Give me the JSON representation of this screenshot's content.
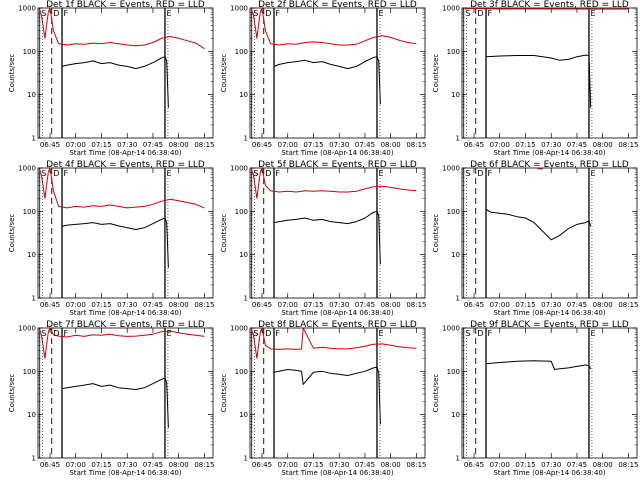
{
  "chart_data": [
    {
      "type": "line",
      "title": "Det 1f BLACK = Events, RED = LLD",
      "xlabel": "Start Time (08-Apr-14 06:38:40)",
      "ylabel": "Counts/sec",
      "xticks": [
        "06:45",
        "07:00",
        "07:15",
        "07:30",
        "07:45",
        "08:00",
        "08:15"
      ],
      "yticks": [
        "1",
        "10",
        "100",
        "1000"
      ],
      "ylim": [
        1,
        1000
      ],
      "yscale": "log",
      "markers": {
        "S": "06:39",
        "D": "06:46",
        "F": "06:52",
        "E": "07:52"
      },
      "series": [
        {
          "name": "LLD",
          "color": "#d00000",
          "x": [
            "06:39",
            "06:40",
            "06:42",
            "06:44",
            "06:45",
            "06:47",
            "06:50",
            "06:55",
            "07:00",
            "07:05",
            "07:10",
            "07:15",
            "07:20",
            "07:25",
            "07:30",
            "07:35",
            "07:40",
            "07:45",
            "07:50",
            "07:55",
            "08:00",
            "08:05",
            "08:10",
            "08:15"
          ],
          "y": [
            900,
            700,
            200,
            800,
            1000,
            300,
            150,
            140,
            150,
            145,
            155,
            150,
            160,
            150,
            140,
            135,
            140,
            160,
            200,
            220,
            200,
            175,
            155,
            115
          ]
        },
        {
          "name": "Events",
          "color": "#000000",
          "x": [
            "06:52",
            "06:55",
            "07:00",
            "07:05",
            "07:10",
            "07:15",
            "07:20",
            "07:25",
            "07:30",
            "07:35",
            "07:40",
            "07:45",
            "07:50",
            "07:52",
            "07:53",
            "07:54"
          ],
          "y": [
            45,
            48,
            52,
            55,
            60,
            52,
            55,
            48,
            45,
            40,
            45,
            55,
            70,
            75,
            60,
            5
          ]
        }
      ]
    },
    {
      "type": "line",
      "title": "Det 2f BLACK = Events, RED = LLD",
      "xlabel": "Start Time (08-Apr-14 06:38:40)",
      "ylabel": "Counts/sec",
      "xticks": [
        "06:45",
        "07:00",
        "07:15",
        "07:30",
        "07:45",
        "08:00",
        "08:15"
      ],
      "yticks": [
        "1",
        "10",
        "100",
        "1000"
      ],
      "ylim": [
        1,
        1000
      ],
      "yscale": "log",
      "markers": {
        "S": "06:39",
        "D": "06:46",
        "F": "06:52",
        "E": "07:52"
      },
      "series": [
        {
          "name": "LLD",
          "color": "#d00000",
          "x": [
            "06:39",
            "06:40",
            "06:42",
            "06:44",
            "06:45",
            "06:47",
            "06:50",
            "06:55",
            "07:00",
            "07:05",
            "07:10",
            "07:15",
            "07:20",
            "07:25",
            "07:30",
            "07:35",
            "07:40",
            "07:45",
            "07:50",
            "07:55",
            "08:00",
            "08:05",
            "08:10",
            "08:15"
          ],
          "y": [
            900,
            700,
            200,
            800,
            1000,
            300,
            150,
            140,
            150,
            145,
            160,
            165,
            160,
            150,
            140,
            140,
            145,
            175,
            210,
            230,
            210,
            180,
            160,
            150
          ]
        },
        {
          "name": "Events",
          "color": "#000000",
          "x": [
            "06:52",
            "06:55",
            "07:00",
            "07:05",
            "07:10",
            "07:15",
            "07:20",
            "07:25",
            "07:30",
            "07:35",
            "07:40",
            "07:45",
            "07:50",
            "07:52",
            "07:53",
            "07:54"
          ],
          "y": [
            45,
            50,
            55,
            58,
            62,
            55,
            58,
            50,
            45,
            40,
            45,
            58,
            72,
            75,
            60,
            6
          ]
        }
      ]
    },
    {
      "type": "line",
      "title": "Det 3f BLACK = Events, RED = LLD",
      "xlabel": "Start Time (08-Apr-14 06:38:40)",
      "ylabel": "Counts/sec",
      "xticks": [
        "06:45",
        "07:00",
        "07:15",
        "07:30",
        "07:45",
        "08:00",
        "08:15"
      ],
      "yticks": [
        "1",
        "10",
        "100",
        "1000"
      ],
      "ylim": [
        1,
        1000
      ],
      "yscale": "log",
      "markers": {
        "S": "06:39",
        "D": "06:46",
        "F": "06:52",
        "E": "07:52"
      },
      "series": [
        {
          "name": "LLD",
          "color": "#d00000",
          "x": [
            "06:40",
            "06:45",
            "06:50",
            "07:00",
            "07:15",
            "07:30",
            "07:45",
            "08:00",
            "08:15"
          ],
          "y": [
            950,
            980,
            960,
            950,
            955,
            950,
            950,
            945,
            950
          ]
        },
        {
          "name": "Events",
          "color": "#000000",
          "x": [
            "06:52",
            "07:00",
            "07:10",
            "07:20",
            "07:30",
            "07:35",
            "07:40",
            "07:45",
            "07:50",
            "07:52",
            "07:53"
          ],
          "y": [
            75,
            78,
            80,
            80,
            70,
            62,
            65,
            75,
            82,
            80,
            5
          ]
        }
      ]
    },
    {
      "type": "line",
      "title": "Det 4f BLACK = Events, RED = LLD",
      "xlabel": "Start Time (08-Apr-14 06:38:40)",
      "ylabel": "Counts/sec",
      "xticks": [
        "06:45",
        "07:00",
        "07:15",
        "07:30",
        "07:45",
        "08:00",
        "08:15"
      ],
      "yticks": [
        "1",
        "10",
        "100",
        "1000"
      ],
      "ylim": [
        1,
        1000
      ],
      "yscale": "log",
      "markers": {
        "S": "06:39",
        "D": "06:46",
        "F": "06:52",
        "E": "07:52"
      },
      "series": [
        {
          "name": "LLD",
          "color": "#d00000",
          "x": [
            "06:39",
            "06:40",
            "06:42",
            "06:44",
            "06:45",
            "06:47",
            "06:50",
            "06:55",
            "07:00",
            "07:05",
            "07:10",
            "07:15",
            "07:20",
            "07:25",
            "07:30",
            "07:35",
            "07:40",
            "07:45",
            "07:50",
            "07:55",
            "08:00",
            "08:05",
            "08:10",
            "08:15"
          ],
          "y": [
            900,
            700,
            200,
            800,
            1000,
            300,
            130,
            120,
            130,
            125,
            135,
            130,
            140,
            130,
            120,
            125,
            130,
            145,
            170,
            190,
            175,
            160,
            145,
            120
          ]
        },
        {
          "name": "Events",
          "color": "#000000",
          "x": [
            "06:52",
            "06:55",
            "07:00",
            "07:05",
            "07:10",
            "07:15",
            "07:20",
            "07:25",
            "07:30",
            "07:35",
            "07:40",
            "07:45",
            "07:50",
            "07:52",
            "07:53",
            "07:54"
          ],
          "y": [
            45,
            48,
            50,
            52,
            55,
            50,
            52,
            46,
            42,
            38,
            42,
            52,
            65,
            70,
            55,
            5
          ]
        }
      ]
    },
    {
      "type": "line",
      "title": "Det 5f BLACK = Events, RED = LLD",
      "xlabel": "Start Time (08-Apr-14 06:38:40)",
      "ylabel": "Counts/sec",
      "xticks": [
        "06:45",
        "07:00",
        "07:15",
        "07:30",
        "07:45",
        "08:00",
        "08:15"
      ],
      "yticks": [
        "1",
        "10",
        "100",
        "1000"
      ],
      "ylim": [
        1,
        1000
      ],
      "yscale": "log",
      "markers": {
        "S": "06:39",
        "D": "06:46",
        "F": "06:52",
        "E": "07:52"
      },
      "series": [
        {
          "name": "LLD",
          "color": "#d00000",
          "x": [
            "06:39",
            "06:40",
            "06:42",
            "06:44",
            "06:45",
            "06:47",
            "06:50",
            "06:55",
            "07:00",
            "07:05",
            "07:10",
            "07:15",
            "07:20",
            "07:25",
            "07:30",
            "07:35",
            "07:40",
            "07:45",
            "07:50",
            "07:55",
            "08:00",
            "08:05",
            "08:10",
            "08:15"
          ],
          "y": [
            900,
            700,
            200,
            800,
            1000,
            400,
            300,
            280,
            290,
            280,
            300,
            290,
            300,
            290,
            280,
            280,
            290,
            330,
            370,
            380,
            360,
            330,
            310,
            300
          ]
        },
        {
          "name": "Events",
          "color": "#000000",
          "x": [
            "06:52",
            "06:55",
            "07:00",
            "07:05",
            "07:10",
            "07:15",
            "07:20",
            "07:25",
            "07:30",
            "07:35",
            "07:40",
            "07:45",
            "07:50",
            "07:52",
            "07:53",
            "07:54"
          ],
          "y": [
            55,
            58,
            62,
            65,
            70,
            62,
            65,
            58,
            55,
            52,
            58,
            70,
            95,
            100,
            80,
            6
          ]
        }
      ]
    },
    {
      "type": "line",
      "title": "Det 6f BLACK = Events, RED = LLD",
      "xlabel": "Start Time (08-Apr-14 06:38:40)",
      "ylabel": "Counts/sec",
      "xticks": [
        "06:45",
        "07:00",
        "07:15",
        "07:30",
        "07:45",
        "08:00",
        "08:15"
      ],
      "yticks": [
        "1",
        "10",
        "100",
        "1000"
      ],
      "ylim": [
        1,
        1000
      ],
      "yscale": "log",
      "markers": {
        "S": "06:39",
        "D": "06:46",
        "F": "06:52",
        "E": "07:52"
      },
      "series": [
        {
          "name": "LLD",
          "color": "#d00000",
          "x": [
            "07:22",
            "07:25"
          ],
          "y": [
            960,
            950
          ]
        },
        {
          "name": "Events",
          "color": "#000000",
          "x": [
            "06:52",
            "06:55",
            "07:00",
            "07:05",
            "07:10",
            "07:15",
            "07:20",
            "07:25",
            "07:30",
            "07:35",
            "07:40",
            "07:45",
            "07:50",
            "07:52",
            "07:53"
          ],
          "y": [
            110,
            95,
            90,
            85,
            75,
            70,
            55,
            35,
            22,
            28,
            40,
            50,
            55,
            60,
            45
          ]
        }
      ]
    },
    {
      "type": "line",
      "title": "Det 7f BLACK = Events, RED = LLD",
      "xlabel": "Start Time (08-Apr-14 06:38:40)",
      "ylabel": "Counts/sec",
      "xticks": [
        "06:45",
        "07:00",
        "07:15",
        "07:30",
        "07:45",
        "08:00",
        "08:15"
      ],
      "yticks": [
        "1",
        "10",
        "100",
        "1000"
      ],
      "ylim": [
        1,
        1000
      ],
      "yscale": "log",
      "markers": {
        "S": "06:39",
        "D": "06:46",
        "F": "06:52",
        "E": "07:52"
      },
      "series": [
        {
          "name": "LLD",
          "color": "#d00000",
          "x": [
            "06:39",
            "06:40",
            "06:42",
            "06:44",
            "06:45",
            "06:47",
            "06:50",
            "06:55",
            "07:00",
            "07:05",
            "07:10",
            "07:15",
            "07:20",
            "07:25",
            "07:30",
            "07:35",
            "07:40",
            "07:45",
            "07:50",
            "07:55",
            "08:00",
            "08:05",
            "08:10",
            "08:15"
          ],
          "y": [
            900,
            700,
            200,
            800,
            1000,
            700,
            650,
            620,
            680,
            640,
            700,
            680,
            720,
            660,
            640,
            650,
            680,
            720,
            820,
            850,
            780,
            720,
            680,
            640
          ]
        },
        {
          "name": "Events",
          "color": "#000000",
          "x": [
            "06:52",
            "06:55",
            "07:00",
            "07:05",
            "07:10",
            "07:15",
            "07:20",
            "07:25",
            "07:30",
            "07:35",
            "07:40",
            "07:45",
            "07:50",
            "07:52",
            "07:53",
            "07:54"
          ],
          "y": [
            40,
            42,
            45,
            48,
            52,
            45,
            48,
            42,
            40,
            38,
            42,
            52,
            65,
            70,
            55,
            5
          ]
        }
      ]
    },
    {
      "type": "line",
      "title": "Det 8f BLACK = Events, RED = LLD",
      "xlabel": "Start Time (08-Apr-14 06:38:40)",
      "ylabel": "Counts/sec",
      "xticks": [
        "06:45",
        "07:00",
        "07:15",
        "07:30",
        "07:45",
        "08:00",
        "08:15"
      ],
      "yticks": [
        "1",
        "10",
        "100",
        "1000"
      ],
      "ylim": [
        1,
        1000
      ],
      "yscale": "log",
      "markers": {
        "S": "06:39",
        "D": "06:46",
        "F": "06:52",
        "E": "07:52"
      },
      "series": [
        {
          "name": "LLD",
          "color": "#d00000",
          "x": [
            "06:39",
            "06:40",
            "06:42",
            "06:44",
            "06:45",
            "06:47",
            "06:50",
            "06:55",
            "07:00",
            "07:05",
            "07:08",
            "07:09",
            "07:15",
            "07:20",
            "07:25",
            "07:30",
            "07:35",
            "07:40",
            "07:45",
            "07:50",
            "07:55",
            "08:00",
            "08:05",
            "08:10",
            "08:15"
          ],
          "y": [
            900,
            700,
            200,
            800,
            1000,
            400,
            330,
            320,
            330,
            320,
            330,
            1000,
            340,
            360,
            340,
            330,
            330,
            350,
            380,
            420,
            430,
            400,
            370,
            350,
            340
          ]
        },
        {
          "name": "Events",
          "color": "#000000",
          "x": [
            "06:52",
            "06:55",
            "07:00",
            "07:05",
            "07:08",
            "07:09",
            "07:15",
            "07:20",
            "07:25",
            "07:30",
            "07:35",
            "07:40",
            "07:45",
            "07:50",
            "07:52",
            "07:53",
            "07:54"
          ],
          "y": [
            95,
            100,
            110,
            105,
            100,
            50,
            95,
            100,
            90,
            85,
            80,
            90,
            100,
            120,
            125,
            95,
            6
          ]
        }
      ]
    },
    {
      "type": "line",
      "title": "Det 9f BLACK = Events, RED = LLD",
      "xlabel": "Start Time (08-Apr-14 06:38:40)",
      "ylabel": "Counts/sec",
      "xticks": [
        "06:45",
        "07:00",
        "07:15",
        "07:30",
        "07:45",
        "08:00",
        "08:15"
      ],
      "yticks": [
        "1",
        "10",
        "100",
        "1000"
      ],
      "ylim": [
        1,
        1000
      ],
      "yscale": "log",
      "markers": {
        "S": "06:39",
        "D": "06:46",
        "F": "06:52",
        "E": "07:52"
      },
      "series": [
        {
          "name": "Events",
          "color": "#000000",
          "x": [
            "06:52",
            "07:00",
            "07:10",
            "07:20",
            "07:30",
            "07:32",
            "07:35",
            "07:40",
            "07:45",
            "07:50",
            "07:52",
            "07:53"
          ],
          "y": [
            150,
            160,
            170,
            175,
            170,
            110,
            115,
            120,
            130,
            140,
            135,
            115
          ]
        }
      ]
    }
  ]
}
